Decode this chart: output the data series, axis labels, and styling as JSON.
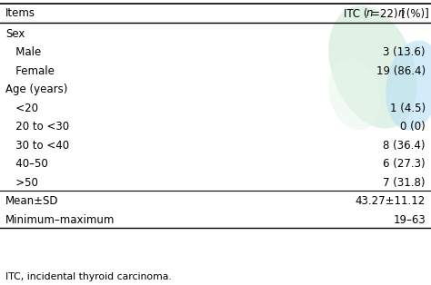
{
  "header_left": "Items",
  "rows": [
    {
      "label": "Sex",
      "value": "",
      "indent": 0,
      "divider_above": true
    },
    {
      "label": "   Male",
      "value": "3 (13.6)",
      "indent": 0
    },
    {
      "label": "   Female",
      "value": "19 (86.4)",
      "indent": 0
    },
    {
      "label": "Age (years)",
      "value": "",
      "indent": 0
    },
    {
      "label": "   <20",
      "value": "1 (4.5)",
      "indent": 0
    },
    {
      "label": "   20 to <30",
      "value": "0 (0)",
      "indent": 0
    },
    {
      "label": "   30 to <40",
      "value": "8 (36.4)",
      "indent": 0
    },
    {
      "label": "   40–50",
      "value": "6 (27.3)",
      "indent": 0
    },
    {
      "label": "   >50",
      "value": "7 (31.8)",
      "indent": 0
    },
    {
      "label": "Mean±SD",
      "value": "43.27±11.12",
      "indent": 0,
      "divider_above": true
    },
    {
      "label": "Minimum–maximum",
      "value": "19–63",
      "indent": 0
    }
  ],
  "footnote": "ITC, incidental thyroid carcinoma.",
  "bg_color": "#ffffff",
  "text_color": "#000000",
  "font_size": 8.5,
  "header_font_size": 8.5,
  "footnote_font_size": 7.8,
  "blob1_color": "#d4edda",
  "blob2_color": "#b8dff5",
  "blob3_color": "#e8f5e9"
}
